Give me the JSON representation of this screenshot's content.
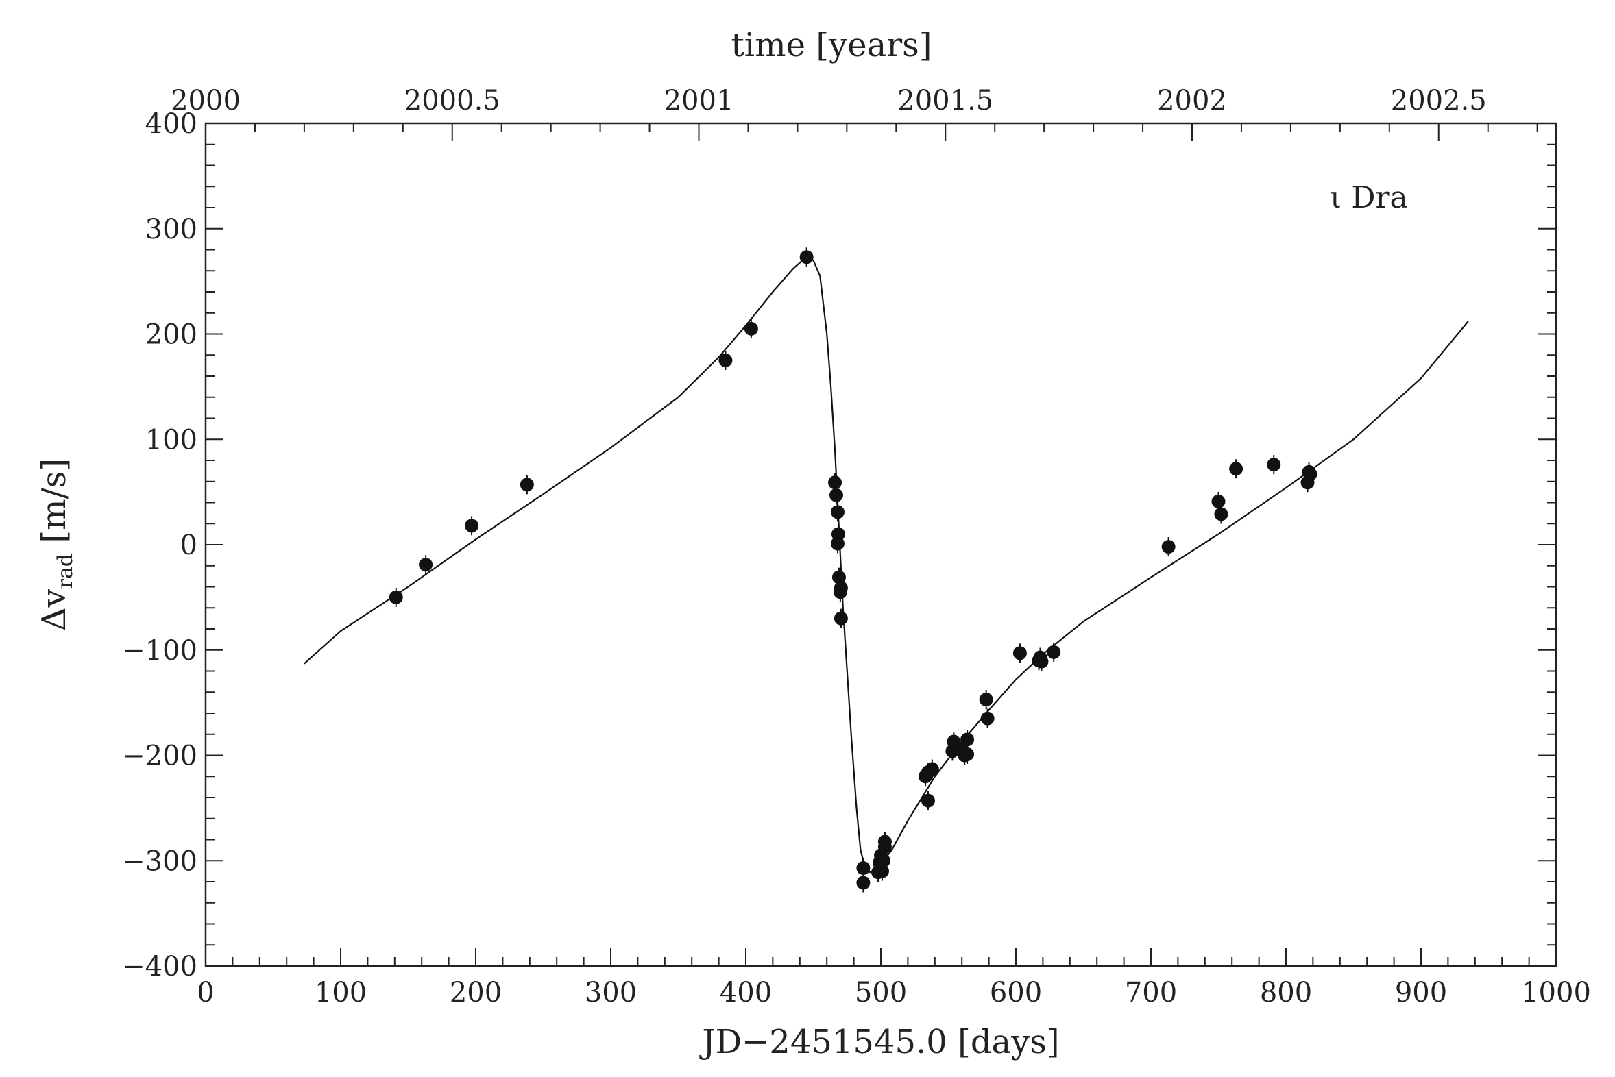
{
  "chart_data": {
    "type": "scatter",
    "title": "",
    "annotation": "ι Dra",
    "xlabel": "JD−2451545.0 [days]",
    "ylabel": {
      "main": "Δv",
      "subscript": "rad",
      "unit": " [m/s]"
    },
    "x2label": "time [years]",
    "xlim": [
      0,
      1000
    ],
    "ylim": [
      -400,
      400
    ],
    "x2lim": [
      2000,
      2002.738
    ],
    "xticks": [
      0,
      100,
      200,
      300,
      400,
      500,
      600,
      700,
      800,
      900,
      1000
    ],
    "xtick_labels": [
      "0",
      "100",
      "200",
      "300",
      "400",
      "500",
      "600",
      "700",
      "800",
      "900",
      "1000"
    ],
    "yticks": [
      -400,
      -300,
      -200,
      -100,
      0,
      100,
      200,
      300,
      400
    ],
    "ytick_labels": [
      "−400",
      "−300",
      "−200",
      "−100",
      "0",
      "100",
      "200",
      "300",
      "400"
    ],
    "x2ticks": [
      2000,
      2000.5,
      2001,
      2001.5,
      2002,
      2002.5
    ],
    "x2tick_labels": [
      "2000",
      "2000.5",
      "2001",
      "2001.5",
      "2002",
      "2002.5"
    ],
    "grid": false,
    "series": [
      {
        "kind": "points",
        "points": [
          [
            141,
            -50
          ],
          [
            163,
            -19
          ],
          [
            197,
            18
          ],
          [
            238,
            57
          ],
          [
            385,
            175
          ],
          [
            404,
            205
          ],
          [
            445,
            273
          ],
          [
            466,
            59
          ],
          [
            467,
            47
          ],
          [
            468,
            31
          ],
          [
            468.5,
            10
          ],
          [
            468,
            1
          ],
          [
            469,
            -31
          ],
          [
            470,
            -45
          ],
          [
            470.5,
            -41
          ],
          [
            470.5,
            -70
          ],
          [
            487,
            -307
          ],
          [
            487,
            -321
          ],
          [
            498,
            -311
          ],
          [
            499,
            -302
          ],
          [
            500,
            -295
          ],
          [
            501,
            -310
          ],
          [
            502,
            -300
          ],
          [
            503,
            -287
          ],
          [
            503,
            -282
          ],
          [
            533,
            -220
          ],
          [
            535,
            -216
          ],
          [
            535,
            -243
          ],
          [
            538,
            -213
          ],
          [
            553,
            -196
          ],
          [
            554,
            -187
          ],
          [
            560,
            -195
          ],
          [
            562,
            -200
          ],
          [
            564,
            -185
          ],
          [
            564,
            -199
          ],
          [
            578,
            -147
          ],
          [
            579,
            -165
          ],
          [
            603,
            -103
          ],
          [
            617,
            -110
          ],
          [
            618,
            -107
          ],
          [
            619,
            -111
          ],
          [
            628,
            -102
          ],
          [
            713,
            -2
          ],
          [
            750,
            41
          ],
          [
            752,
            29
          ],
          [
            763,
            72
          ],
          [
            791,
            76
          ],
          [
            816,
            59
          ],
          [
            817,
            69
          ],
          [
            818,
            67
          ]
        ]
      },
      {
        "kind": "fit",
        "points": [
          [
            73,
            -113
          ],
          [
            100,
            -82
          ],
          [
            150,
            -40
          ],
          [
            200,
            5
          ],
          [
            250,
            48
          ],
          [
            300,
            92
          ],
          [
            350,
            140
          ],
          [
            380,
            178
          ],
          [
            400,
            208
          ],
          [
            420,
            240
          ],
          [
            435,
            262
          ],
          [
            443,
            271
          ],
          [
            450,
            270
          ],
          [
            455,
            255
          ],
          [
            460,
            200
          ],
          [
            463,
            150
          ],
          [
            466,
            90
          ],
          [
            468,
            40
          ],
          [
            470,
            -10
          ],
          [
            472,
            -60
          ],
          [
            475,
            -120
          ],
          [
            478,
            -180
          ],
          [
            482,
            -250
          ],
          [
            485,
            -290
          ],
          [
            488,
            -305
          ],
          [
            492,
            -311
          ],
          [
            497,
            -308
          ],
          [
            502,
            -300
          ],
          [
            508,
            -290
          ],
          [
            520,
            -262
          ],
          [
            540,
            -220
          ],
          [
            560,
            -187
          ],
          [
            580,
            -157
          ],
          [
            600,
            -128
          ],
          [
            620,
            -104
          ],
          [
            650,
            -73
          ],
          [
            700,
            -31
          ],
          [
            750,
            10
          ],
          [
            800,
            54
          ],
          [
            850,
            100
          ],
          [
            900,
            158
          ],
          [
            935,
            212
          ]
        ]
      }
    ]
  }
}
